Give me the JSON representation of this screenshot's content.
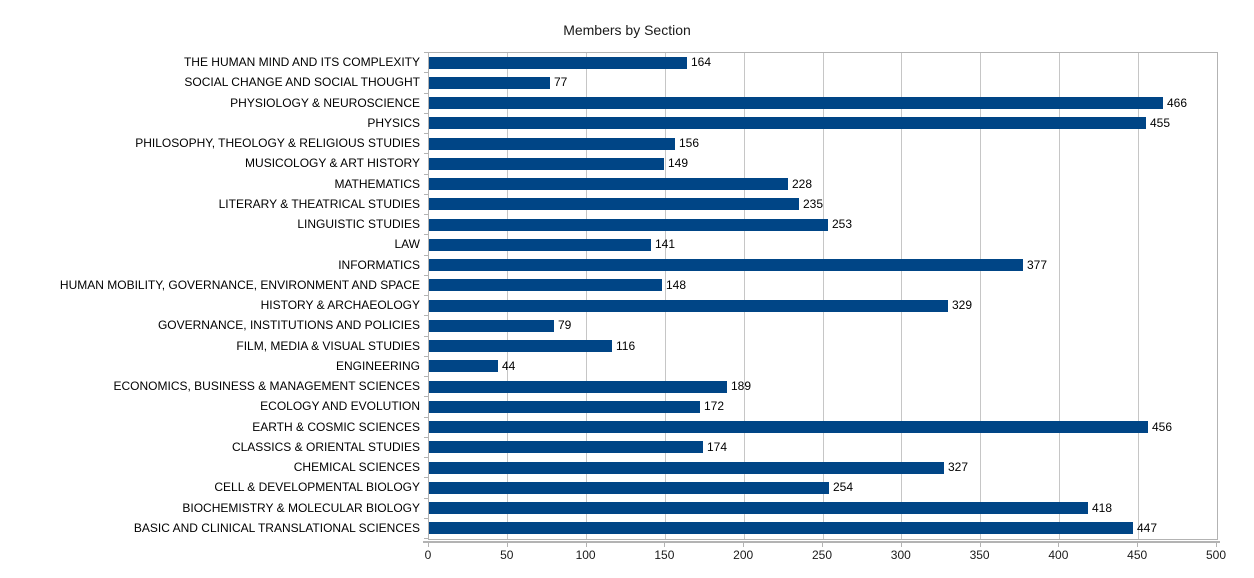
{
  "chart_data": {
    "type": "bar",
    "orientation": "horizontal",
    "title": "Members by Section",
    "categories": [
      "THE HUMAN MIND AND ITS COMPLEXITY",
      "SOCIAL CHANGE AND SOCIAL THOUGHT",
      "PHYSIOLOGY & NEUROSCIENCE",
      "PHYSICS",
      "PHILOSOPHY, THEOLOGY & RELIGIOUS STUDIES",
      "MUSICOLOGY & ART HISTORY",
      "MATHEMATICS",
      "LITERARY & THEATRICAL STUDIES",
      "LINGUISTIC STUDIES",
      "LAW",
      "INFORMATICS",
      "HUMAN MOBILITY, GOVERNANCE, ENVIRONMENT AND SPACE",
      "HISTORY & ARCHAEOLOGY",
      "GOVERNANCE, INSTITUTIONS AND POLICIES",
      "FILM, MEDIA & VISUAL STUDIES",
      "ENGINEERING",
      "ECONOMICS, BUSINESS & MANAGEMENT SCIENCES",
      "ECOLOGY AND EVOLUTION",
      "EARTH & COSMIC SCIENCES",
      "CLASSICS & ORIENTAL STUDIES",
      "CHEMICAL SCIENCES",
      "CELL & DEVELOPMENTAL BIOLOGY",
      "BIOCHEMISTRY & MOLECULAR BIOLOGY",
      "BASIC AND CLINICAL TRANSLATIONAL SCIENCES"
    ],
    "values": [
      164,
      77,
      466,
      455,
      156,
      149,
      228,
      235,
      253,
      141,
      377,
      148,
      329,
      79,
      116,
      44,
      189,
      172,
      456,
      174,
      327,
      254,
      418,
      447
    ],
    "xlabel": "",
    "ylabel": "",
    "xlim": [
      0,
      500
    ],
    "x_ticks": [
      0,
      50,
      100,
      150,
      200,
      250,
      300,
      350,
      400,
      450,
      500
    ],
    "grid": true,
    "legend": "none",
    "data_labels": true,
    "bar_color": "#004586",
    "gridline_color": "#c6c6c6",
    "axis_color": "#b3b3b3"
  }
}
